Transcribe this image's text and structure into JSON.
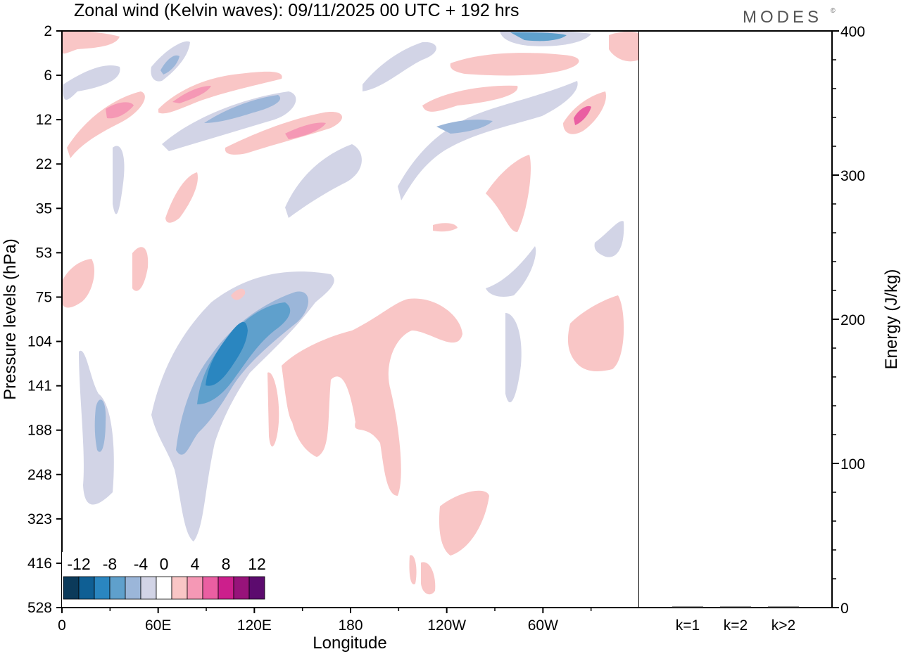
{
  "header": {
    "title": "Zonal wind (Kelvin waves):  09/11/2025  00 UTC  + 192 hrs",
    "brand": "MODES",
    "brand_mark": "©"
  },
  "chart_data": [
    {
      "type": "contour",
      "title": "Zonal wind (Kelvin waves):  09/11/2025  00 UTC  + 192 hrs",
      "xlabel": "Longitude",
      "ylabel": "Pressure levels (hPa)",
      "x_ticks": [
        "0",
        "60E",
        "120E",
        "180",
        "120W",
        "60W"
      ],
      "x_tick_values": [
        0,
        60,
        120,
        180,
        240,
        300
      ],
      "xlim": [
        0,
        360
      ],
      "y_ticks": [
        "2",
        "6",
        "12",
        "22",
        "35",
        "53",
        "75",
        "104",
        "141",
        "188",
        "248",
        "323",
        "416",
        "528"
      ],
      "y_scale": "pressure levels, top to bottom",
      "colorbar": {
        "labels": [
          "-12",
          "-8",
          "-4",
          "0",
          "4",
          "8",
          "12"
        ],
        "levels": [
          -14,
          -12,
          -10,
          -8,
          -6,
          -4,
          -2,
          2,
          4,
          6,
          8,
          10,
          12,
          14
        ],
        "colors": [
          "#0b3a5a",
          "#0f5f94",
          "#2a86c0",
          "#5fa0cc",
          "#9bb6d9",
          "#d2d4e6",
          "#ffffff",
          "#f9c6c6",
          "#f598b5",
          "#ea5fa2",
          "#cc1f8c",
          "#97137a",
          "#5c0b6e"
        ]
      },
      "features": [
        {
          "label": "strong easterly anomaly",
          "lon": 108,
          "level_hPa": 115,
          "value": -10
        },
        {
          "label": "easterly anomaly band",
          "lon_range": [
            75,
            140
          ],
          "level_range_hPa": [
            75,
            330
          ],
          "value": -4
        },
        {
          "label": "westerly anomaly",
          "lon_range": [
            140,
            250
          ],
          "level_range_hPa": [
            75,
            300
          ],
          "value": 2
        },
        {
          "label": "upper westerly maximum",
          "lon": 318,
          "level_hPa": 12,
          "value": 8
        },
        {
          "label": "upper easterly band",
          "lon_range": [
            310,
            322
          ],
          "level_hPa": 3,
          "value": -6
        }
      ]
    },
    {
      "type": "bar",
      "categories": [
        "k=1",
        "k=2",
        "k>2"
      ],
      "values": [
        0.5,
        0.3,
        0.3
      ],
      "ylabel": "Energy (J/kg)",
      "ylim": [
        0,
        400
      ],
      "y_ticks": [
        "0",
        "100",
        "200",
        "300",
        "400"
      ]
    }
  ]
}
